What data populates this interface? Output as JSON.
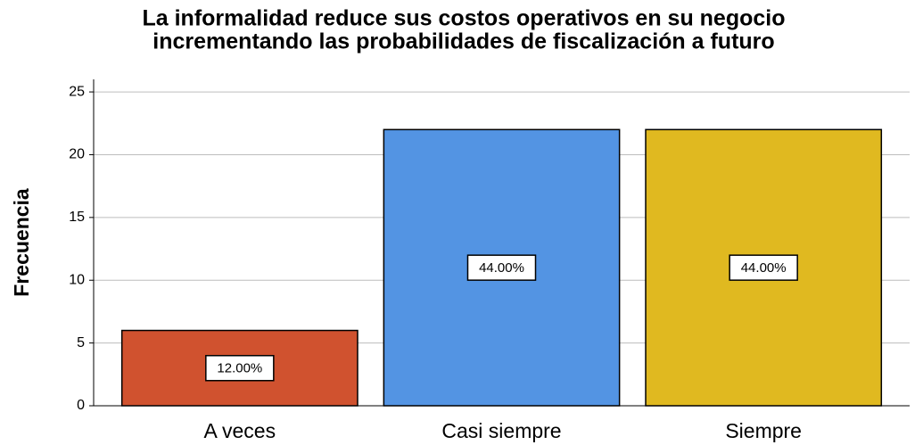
{
  "chart_data": {
    "type": "bar",
    "title": [
      "La informalidad reduce sus costos operativos en su negocio",
      "incrementando las probabilidades de fiscalización a futuro"
    ],
    "y_label": "Frecuencia",
    "categories": [
      "A veces",
      "Casi siempre",
      "Siempre"
    ],
    "values": [
      6,
      22,
      22
    ],
    "colors": [
      "#d0522f",
      "#5394e3",
      "#e0b920"
    ],
    "percent": [
      12.0,
      44.0,
      44.0
    ],
    "percent_labels": [
      "12.00%",
      "44.00%",
      "44.00%"
    ],
    "ylim": [
      0,
      26
    ],
    "yticks": [
      0,
      5,
      10,
      15,
      20,
      25
    ],
    "grid": true
  }
}
